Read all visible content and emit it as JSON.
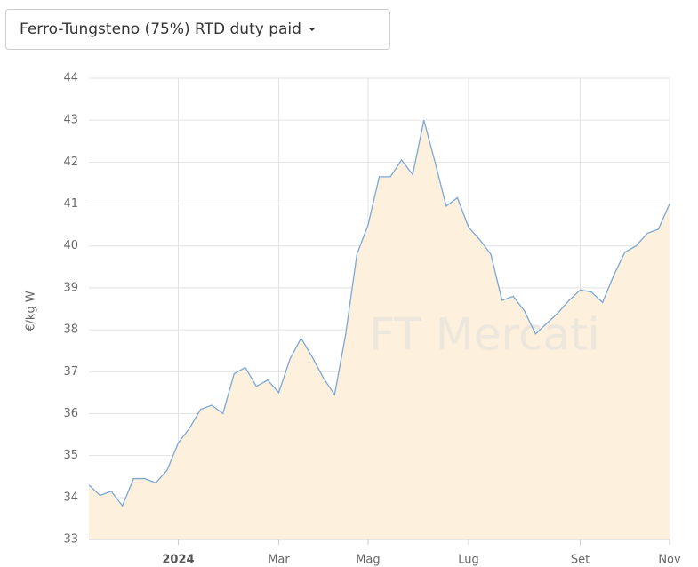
{
  "dropdown": {
    "label": "Ferro-Tungsteno (75%) RTD duty paid"
  },
  "chart_data": {
    "type": "line",
    "ylabel": "€/kg W",
    "watermark": "FT Mercati",
    "categories": [
      null,
      null,
      null,
      null,
      null,
      null,
      null,
      null,
      "2024",
      null,
      null,
      null,
      null,
      null,
      null,
      null,
      null,
      "Mar",
      null,
      null,
      null,
      null,
      null,
      null,
      null,
      "Mag",
      null,
      null,
      null,
      null,
      null,
      null,
      null,
      null,
      "Lug",
      null,
      null,
      null,
      null,
      null,
      null,
      null,
      null,
      null,
      "Set",
      null,
      null,
      null,
      null,
      null,
      null,
      null,
      "Nov"
    ],
    "series": [
      {
        "name": "Ferro-Tungsteno (75%) RTD duty paid",
        "color": "#7aa7d8",
        "fill": "#fdf0dd",
        "values": [
          34.3,
          34.05,
          34.15,
          33.8,
          34.45,
          34.45,
          34.35,
          34.65,
          35.3,
          35.65,
          36.1,
          36.2,
          36.0,
          36.95,
          37.1,
          36.65,
          36.8,
          36.5,
          37.3,
          37.8,
          37.35,
          36.85,
          36.45,
          37.9,
          39.8,
          40.5,
          41.65,
          41.65,
          42.05,
          41.7,
          43.0,
          42.0,
          40.95,
          41.15,
          40.45,
          40.15,
          39.8,
          38.7,
          38.8,
          38.45,
          37.9,
          38.15,
          38.4,
          38.7,
          38.95,
          38.9,
          38.65,
          39.3,
          39.85,
          40.0,
          40.3,
          40.4,
          41.0
        ]
      }
    ],
    "ylim": [
      33,
      44
    ],
    "yticks": [
      33,
      34,
      35,
      36,
      37,
      38,
      39,
      40,
      41,
      42,
      43,
      44
    ],
    "grid": true
  }
}
